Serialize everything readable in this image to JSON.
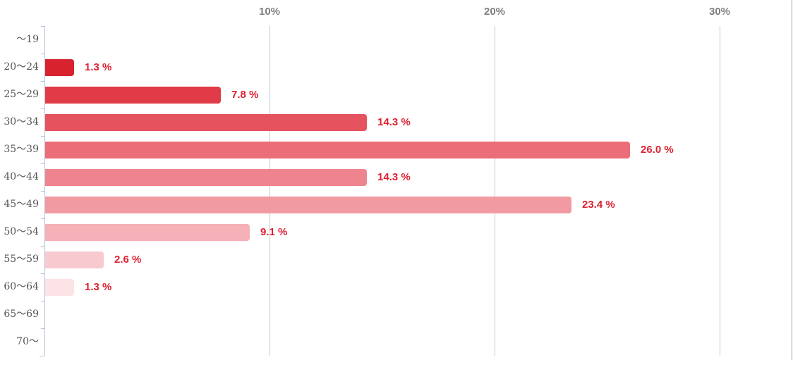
{
  "chart_data": {
    "type": "bar",
    "orientation": "horizontal",
    "title": "",
    "xlabel": "",
    "ylabel": "",
    "categories": [
      "〜19",
      "20〜24",
      "25〜29",
      "30〜34",
      "35〜39",
      "40〜44",
      "45〜49",
      "50〜54",
      "55〜59",
      "60〜64",
      "65〜69",
      "70〜"
    ],
    "values": [
      0,
      1.3,
      7.8,
      14.3,
      26.0,
      14.3,
      23.4,
      9.1,
      2.6,
      1.3,
      0,
      0
    ],
    "value_labels": [
      "",
      "1.3 %",
      "7.8 %",
      "14.3 %",
      "26.0 %",
      "14.3 %",
      "23.4 %",
      "9.1 %",
      "2.6 %",
      "1.3 %",
      "",
      ""
    ],
    "bar_colors": [
      null,
      "#d8232f",
      "#e03b46",
      "#e4535e",
      "#eb6d77",
      "#ee858e",
      "#f29aa2",
      "#f5b1b7",
      "#f8c9ce",
      "#fce3e5",
      null,
      null
    ],
    "x_axis": {
      "position": "top",
      "ticks": [
        "10%",
        "20%",
        "30%"
      ],
      "tick_values": [
        10,
        20,
        30
      ]
    },
    "xlim": [
      0,
      33.2
    ],
    "grid": "vertical-only",
    "legend": "none",
    "colors": {
      "grid_line": "#c9c9c9",
      "y_axis_line": "#b7c4d7",
      "axis_tick_label": "#7f7f7f",
      "category_label": "#555555",
      "value_label": "#dc2130",
      "screen_edge": "#a6a6a6"
    }
  }
}
